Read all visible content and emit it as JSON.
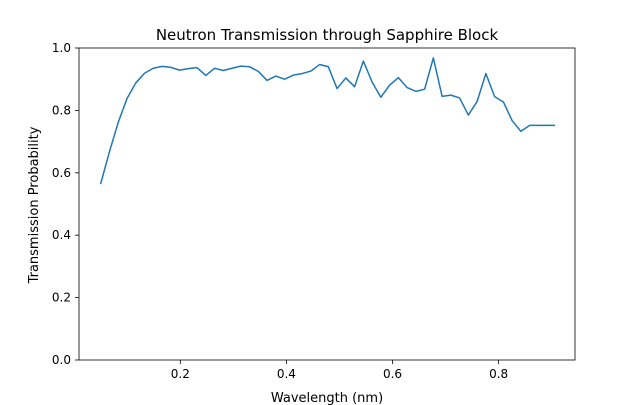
{
  "chart_data": {
    "type": "line",
    "title": "Neutron Transmission through Sapphire Block",
    "xlabel": "Wavelength (nm)",
    "ylabel": "Transmission Probability",
    "xlim": [
      0.009,
      0.944
    ],
    "ylim": [
      0.0,
      1.0
    ],
    "xticks": [
      0.2,
      0.4,
      0.6,
      0.8
    ],
    "xtick_labels": [
      "0.2",
      "0.4",
      "0.6",
      "0.8"
    ],
    "yticks": [
      0.0,
      0.2,
      0.4,
      0.6,
      0.8,
      1.0
    ],
    "ytick_labels": [
      "0.0",
      "0.2",
      "0.4",
      "0.6",
      "0.8",
      "1.0"
    ],
    "grid": false,
    "legend": "none",
    "series": [
      {
        "color": "#1f77b4",
        "x": [
          0.05,
          0.0665,
          0.083,
          0.0995,
          0.116,
          0.1325,
          0.149,
          0.1655,
          0.182,
          0.1985,
          0.215,
          0.2315,
          0.248,
          0.2645,
          0.281,
          0.2975,
          0.314,
          0.3305,
          0.347,
          0.3635,
          0.38,
          0.3965,
          0.413,
          0.4295,
          0.446,
          0.4625,
          0.479,
          0.4955,
          0.512,
          0.5285,
          0.545,
          0.5615,
          0.578,
          0.5945,
          0.611,
          0.6275,
          0.644,
          0.6605,
          0.677,
          0.6935,
          0.71,
          0.7265,
          0.743,
          0.7595,
          0.776,
          0.7925,
          0.809,
          0.8255,
          0.842,
          0.8585,
          0.875,
          0.8915,
          0.905
        ],
        "y": [
          0.566,
          0.668,
          0.762,
          0.838,
          0.888,
          0.919,
          0.935,
          0.941,
          0.938,
          0.929,
          0.934,
          0.937,
          0.912,
          0.935,
          0.928,
          0.935,
          0.942,
          0.94,
          0.925,
          0.896,
          0.91,
          0.9,
          0.913,
          0.918,
          0.926,
          0.947,
          0.94,
          0.87,
          0.904,
          0.876,
          0.958,
          0.891,
          0.842,
          0.881,
          0.905,
          0.873,
          0.861,
          0.868,
          0.968,
          0.845,
          0.849,
          0.84,
          0.785,
          0.829,
          0.918,
          0.844,
          0.827,
          0.767,
          0.733,
          0.752,
          0.752,
          0.752,
          0.752
        ]
      }
    ]
  }
}
